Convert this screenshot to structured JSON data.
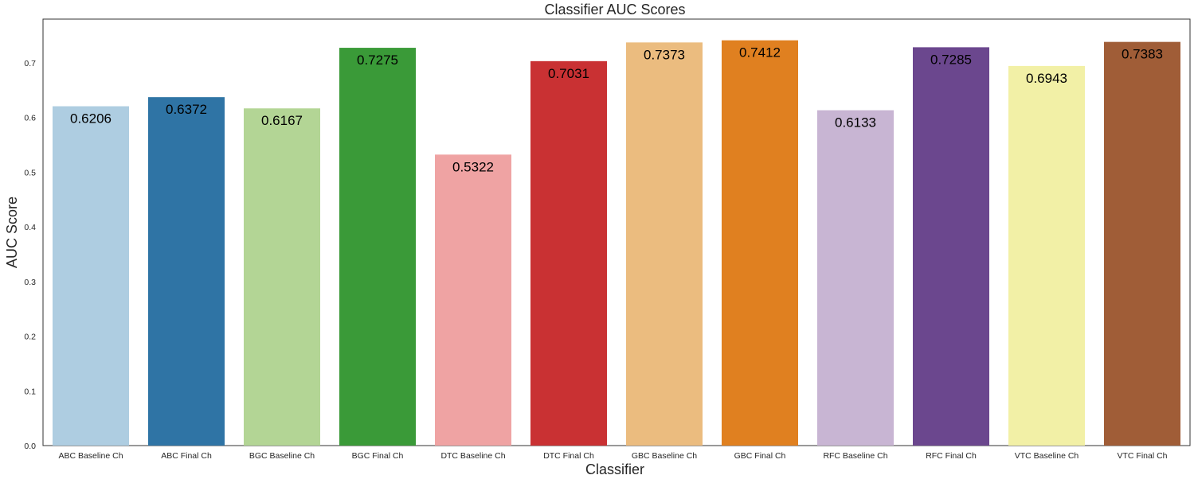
{
  "chart_data": {
    "type": "bar",
    "title": "Classifier AUC Scores",
    "xlabel": "Classifier",
    "ylabel": "AUC Score",
    "ylim": [
      0.0,
      0.78
    ],
    "yticks": [
      "0.0",
      "0.1",
      "0.2",
      "0.3",
      "0.4",
      "0.5",
      "0.6",
      "0.7"
    ],
    "grid": false,
    "categories": [
      "ABC Baseline Ch",
      "ABC Final Ch",
      "BGC Baseline Ch",
      "BGC Final Ch",
      "DTC Baseline Ch",
      "DTC Final Ch",
      "GBC Baseline Ch",
      "GBC Final Ch",
      "RFC Baseline Ch",
      "RFC Final Ch",
      "VTC Baseline Ch",
      "VTC Final Ch"
    ],
    "values": [
      0.6206,
      0.6372,
      0.6167,
      0.7275,
      0.5322,
      0.7031,
      0.7373,
      0.7412,
      0.6133,
      0.7285,
      0.6943,
      0.7383
    ],
    "value_labels": [
      "0.6206",
      "0.6372",
      "0.6167",
      "0.7275",
      "0.5322",
      "0.7031",
      "0.7373",
      "0.7412",
      "0.6133",
      "0.7285",
      "0.6943",
      "0.7383"
    ],
    "colors": [
      "#aecde1",
      "#2f74a5",
      "#b3d595",
      "#3a9a38",
      "#efa3a3",
      "#c93133",
      "#ebbc7f",
      "#e08020",
      "#c8b5d3",
      "#6b478e",
      "#f2f0a6",
      "#a05d37"
    ]
  }
}
